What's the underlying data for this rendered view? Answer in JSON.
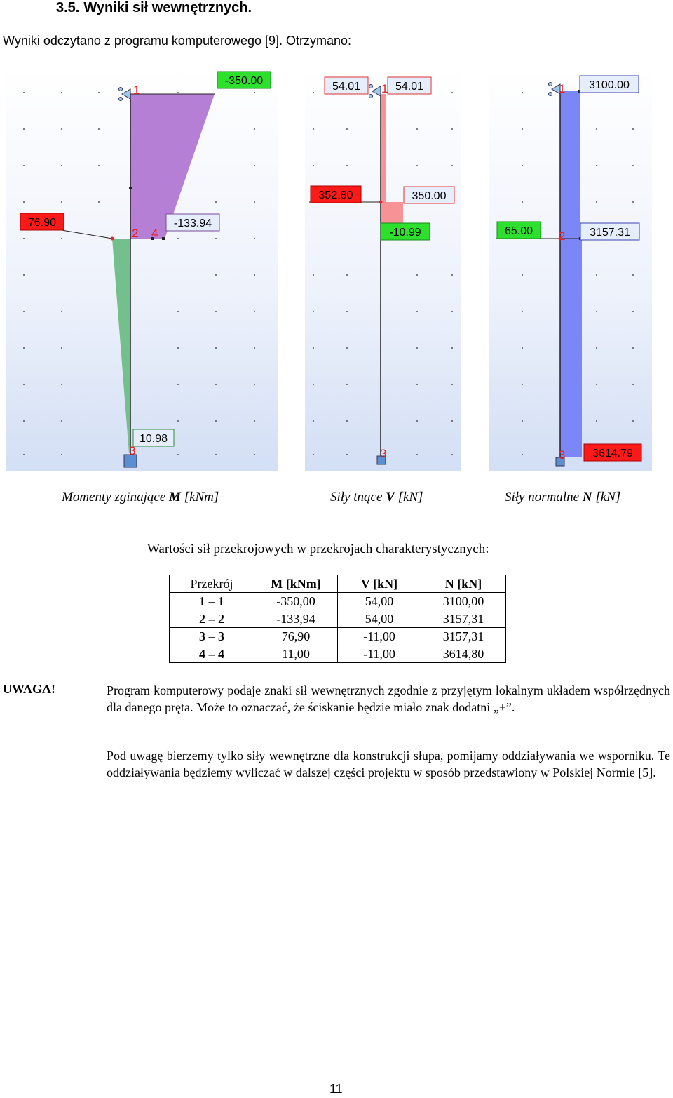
{
  "heading": {
    "number": "3.5.",
    "title": "Wyniki sił wewnętrznych."
  },
  "intro": "Wyniki odczytano z programu komputerowego [9]. Otrzymano:",
  "diagrams": {
    "moment": {
      "caption_prefix": "Momenty zginające",
      "caption_symbol": "M",
      "caption_unit": "[kNm]",
      "labels": {
        "top": "-350.00",
        "left": "76.90",
        "right": "-133.94",
        "bottom": "10.98"
      },
      "nodes": [
        "1",
        "2",
        "4",
        "3"
      ],
      "colors": {
        "upper": "#b57fd6",
        "lower": "#74c08c"
      }
    },
    "shear": {
      "caption_prefix": "Siły tnące",
      "caption_symbol": "V",
      "caption_unit": "[kN]",
      "labels": {
        "top_left": "54.01",
        "top_right": "54.01",
        "mid_left": "352.80",
        "mid_right": "350.00",
        "lower": "-10.99"
      },
      "nodes": [
        "1",
        "3"
      ],
      "colors": {
        "fill": "#f79296"
      }
    },
    "normal": {
      "caption_prefix": "Siły normalne",
      "caption_symbol": "N",
      "caption_unit": "[kN]",
      "labels": {
        "top": "3100.00",
        "mid_left": "65.00",
        "mid_right": "3157.31",
        "bottom": "3614.79"
      },
      "nodes": [
        "1",
        "2",
        "3"
      ],
      "colors": {
        "fill": "#7b87f7"
      }
    },
    "label_colors": {
      "red": "#ff1a1a",
      "green": "#2ee02e",
      "white": "#e6eefc"
    }
  },
  "subtitle": "Wartości sił przekrojowych w przekrojach charakterystycznych:",
  "table": {
    "headers": [
      "Przekrój",
      "M [kNm]",
      "V [kN]",
      "N [kN]"
    ],
    "rows": [
      [
        "1 – 1",
        "-350,00",
        "54,00",
        "3100,00"
      ],
      [
        "2 – 2",
        "-133,94",
        "54,00",
        "3157,31"
      ],
      [
        "3 – 3",
        "76,90",
        "-11,00",
        "3157,31"
      ],
      [
        "4 – 4",
        "11,00",
        "-11,00",
        "3614,80"
      ]
    ]
  },
  "note": {
    "label": "UWAGA!",
    "p1": "Program komputerowy podaje znaki sił wewnętrznych zgodnie z przyjętym lokalnym układem współrzędnych dla danego pręta. Może to oznaczać, że ściskanie będzie miało znak dodatni „+”.",
    "p2": "Pod uwagę bierzemy tylko siły wewnętrzne dla konstrukcji słupa, pomijamy oddziaływania we wsporniku. Te oddziaływania będziemy wyliczać w dalszej części projektu w sposób przedstawiony w Polskiej Normie [5]."
  },
  "page_number": "11"
}
